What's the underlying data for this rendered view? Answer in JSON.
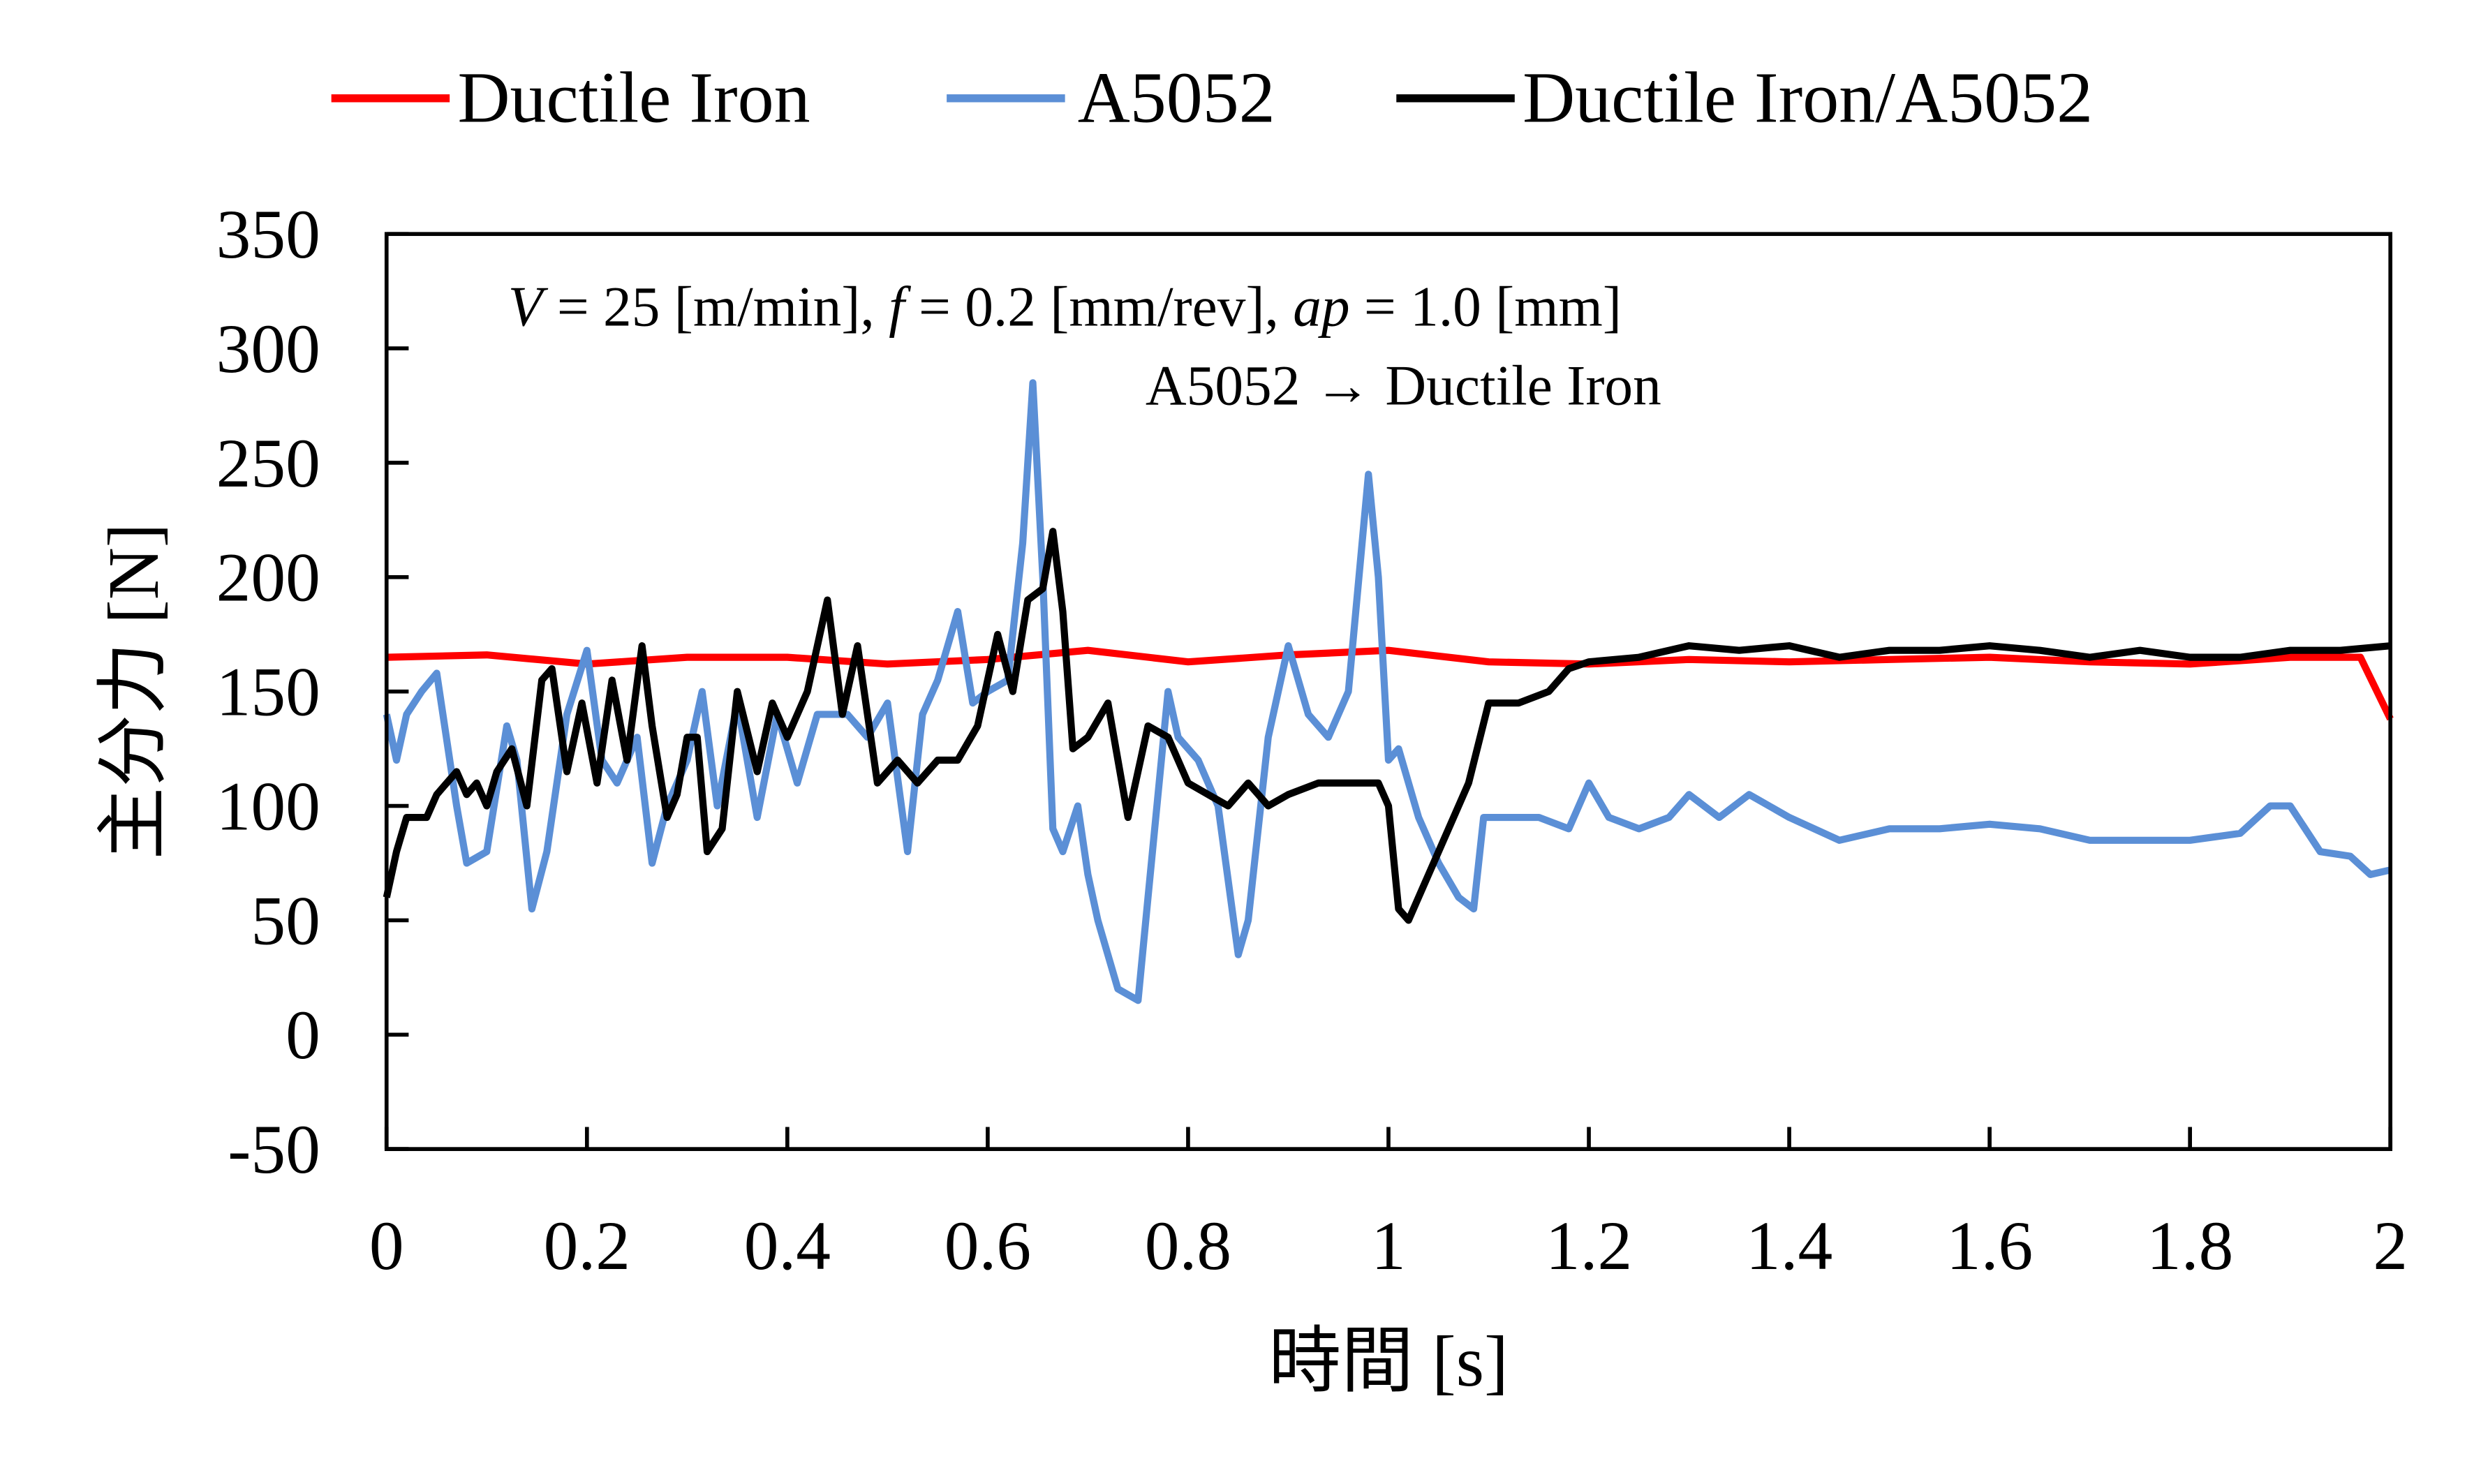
{
  "chart_data": {
    "type": "line",
    "xlabel": "時間 [s]",
    "ylabel": "主分力 [N]",
    "xlim": [
      0,
      2
    ],
    "ylim": [
      -50,
      350
    ],
    "xticks": [
      "0",
      "0.2",
      "0.4",
      "0.6",
      "0.8",
      "1",
      "1.2",
      "1.4",
      "1.6",
      "1.8",
      "2"
    ],
    "yticks": [
      "-50",
      "0",
      "50",
      "100",
      "150",
      "200",
      "250",
      "300",
      "350"
    ],
    "grid": false,
    "legend_position": "top",
    "annotations": {
      "conditions_parts": [
        "V",
        " = 25 [m/min], ",
        "f",
        " = 0.2 [mm/rev], ",
        "ap",
        " = 1.0 [mm]"
      ],
      "order": "A5052 → Ductile Iron"
    },
    "series": [
      {
        "name": "Ductile Iron",
        "color": "#ff0000",
        "x": [
          0,
          0.1,
          0.2,
          0.3,
          0.4,
          0.5,
          0.6,
          0.7,
          0.8,
          0.9,
          1.0,
          1.1,
          1.2,
          1.3,
          1.4,
          1.5,
          1.6,
          1.7,
          1.8,
          1.9,
          1.97,
          2.0
        ],
        "y": [
          165,
          166,
          162,
          165,
          165,
          162,
          164,
          168,
          163,
          166,
          168,
          163,
          162,
          164,
          163,
          164,
          165,
          163,
          162,
          165,
          165,
          138
        ]
      },
      {
        "name": "A5052",
        "color": "#5b8fd6",
        "x": [
          0,
          0.01,
          0.02,
          0.035,
          0.05,
          0.07,
          0.08,
          0.1,
          0.12,
          0.13,
          0.145,
          0.16,
          0.18,
          0.2,
          0.215,
          0.23,
          0.25,
          0.265,
          0.28,
          0.3,
          0.315,
          0.33,
          0.35,
          0.37,
          0.39,
          0.41,
          0.43,
          0.46,
          0.48,
          0.5,
          0.52,
          0.535,
          0.55,
          0.57,
          0.585,
          0.6,
          0.62,
          0.635,
          0.645,
          0.655,
          0.665,
          0.675,
          0.69,
          0.7,
          0.71,
          0.73,
          0.75,
          0.76,
          0.78,
          0.79,
          0.81,
          0.83,
          0.85,
          0.86,
          0.88,
          0.9,
          0.92,
          0.94,
          0.96,
          0.98,
          0.99,
          1.0,
          1.01,
          1.03,
          1.05,
          1.07,
          1.085,
          1.095,
          1.12,
          1.15,
          1.18,
          1.2,
          1.22,
          1.25,
          1.28,
          1.3,
          1.33,
          1.36,
          1.4,
          1.45,
          1.5,
          1.55,
          1.6,
          1.65,
          1.7,
          1.75,
          1.8,
          1.85,
          1.88,
          1.9,
          1.93,
          1.96,
          1.98,
          2.0
        ],
        "y": [
          140,
          120,
          140,
          150,
          158,
          100,
          75,
          80,
          135,
          120,
          55,
          80,
          140,
          168,
          120,
          110,
          130,
          75,
          100,
          120,
          150,
          100,
          145,
          95,
          140,
          110,
          140,
          140,
          130,
          145,
          80,
          140,
          155,
          185,
          145,
          150,
          155,
          215,
          285,
          200,
          90,
          80,
          100,
          70,
          50,
          20,
          15,
          60,
          150,
          130,
          120,
          100,
          35,
          50,
          130,
          170,
          140,
          130,
          150,
          245,
          200,
          120,
          125,
          95,
          75,
          60,
          55,
          95,
          95,
          95,
          90,
          110,
          95,
          90,
          95,
          105,
          95,
          105,
          95,
          85,
          90,
          90,
          92,
          90,
          85,
          85,
          85,
          88,
          100,
          100,
          80,
          78,
          70,
          72
        ]
      },
      {
        "name": "Ductile Iron/A5052",
        "color": "#000000",
        "x": [
          0,
          0.01,
          0.02,
          0.04,
          0.05,
          0.06,
          0.07,
          0.08,
          0.09,
          0.1,
          0.11,
          0.125,
          0.14,
          0.155,
          0.165,
          0.18,
          0.195,
          0.21,
          0.225,
          0.24,
          0.255,
          0.265,
          0.28,
          0.29,
          0.3,
          0.31,
          0.32,
          0.335,
          0.35,
          0.37,
          0.385,
          0.4,
          0.42,
          0.44,
          0.455,
          0.47,
          0.49,
          0.51,
          0.53,
          0.55,
          0.57,
          0.59,
          0.61,
          0.625,
          0.64,
          0.655,
          0.665,
          0.675,
          0.685,
          0.7,
          0.72,
          0.74,
          0.76,
          0.78,
          0.8,
          0.82,
          0.84,
          0.86,
          0.88,
          0.9,
          0.93,
          0.96,
          0.99,
          1.0,
          1.01,
          1.02,
          1.04,
          1.06,
          1.08,
          1.1,
          1.13,
          1.16,
          1.18,
          1.2,
          1.25,
          1.3,
          1.35,
          1.4,
          1.45,
          1.5,
          1.55,
          1.6,
          1.65,
          1.7,
          1.75,
          1.8,
          1.85,
          1.9,
          1.95,
          2.0
        ],
        "y": [
          60,
          80,
          95,
          95,
          105,
          110,
          115,
          105,
          110,
          100,
          115,
          125,
          100,
          155,
          160,
          115,
          145,
          110,
          155,
          120,
          170,
          135,
          95,
          105,
          130,
          130,
          80,
          90,
          150,
          115,
          145,
          130,
          150,
          190,
          140,
          170,
          110,
          120,
          110,
          120,
          120,
          135,
          175,
          150,
          190,
          195,
          220,
          185,
          125,
          130,
          145,
          95,
          135,
          130,
          110,
          105,
          100,
          110,
          100,
          105,
          110,
          110,
          110,
          100,
          55,
          50,
          70,
          90,
          110,
          145,
          145,
          150,
          160,
          163,
          165,
          170,
          168,
          170,
          165,
          168,
          168,
          170,
          168,
          165,
          168,
          165,
          165,
          168,
          168,
          170
        ]
      }
    ]
  }
}
